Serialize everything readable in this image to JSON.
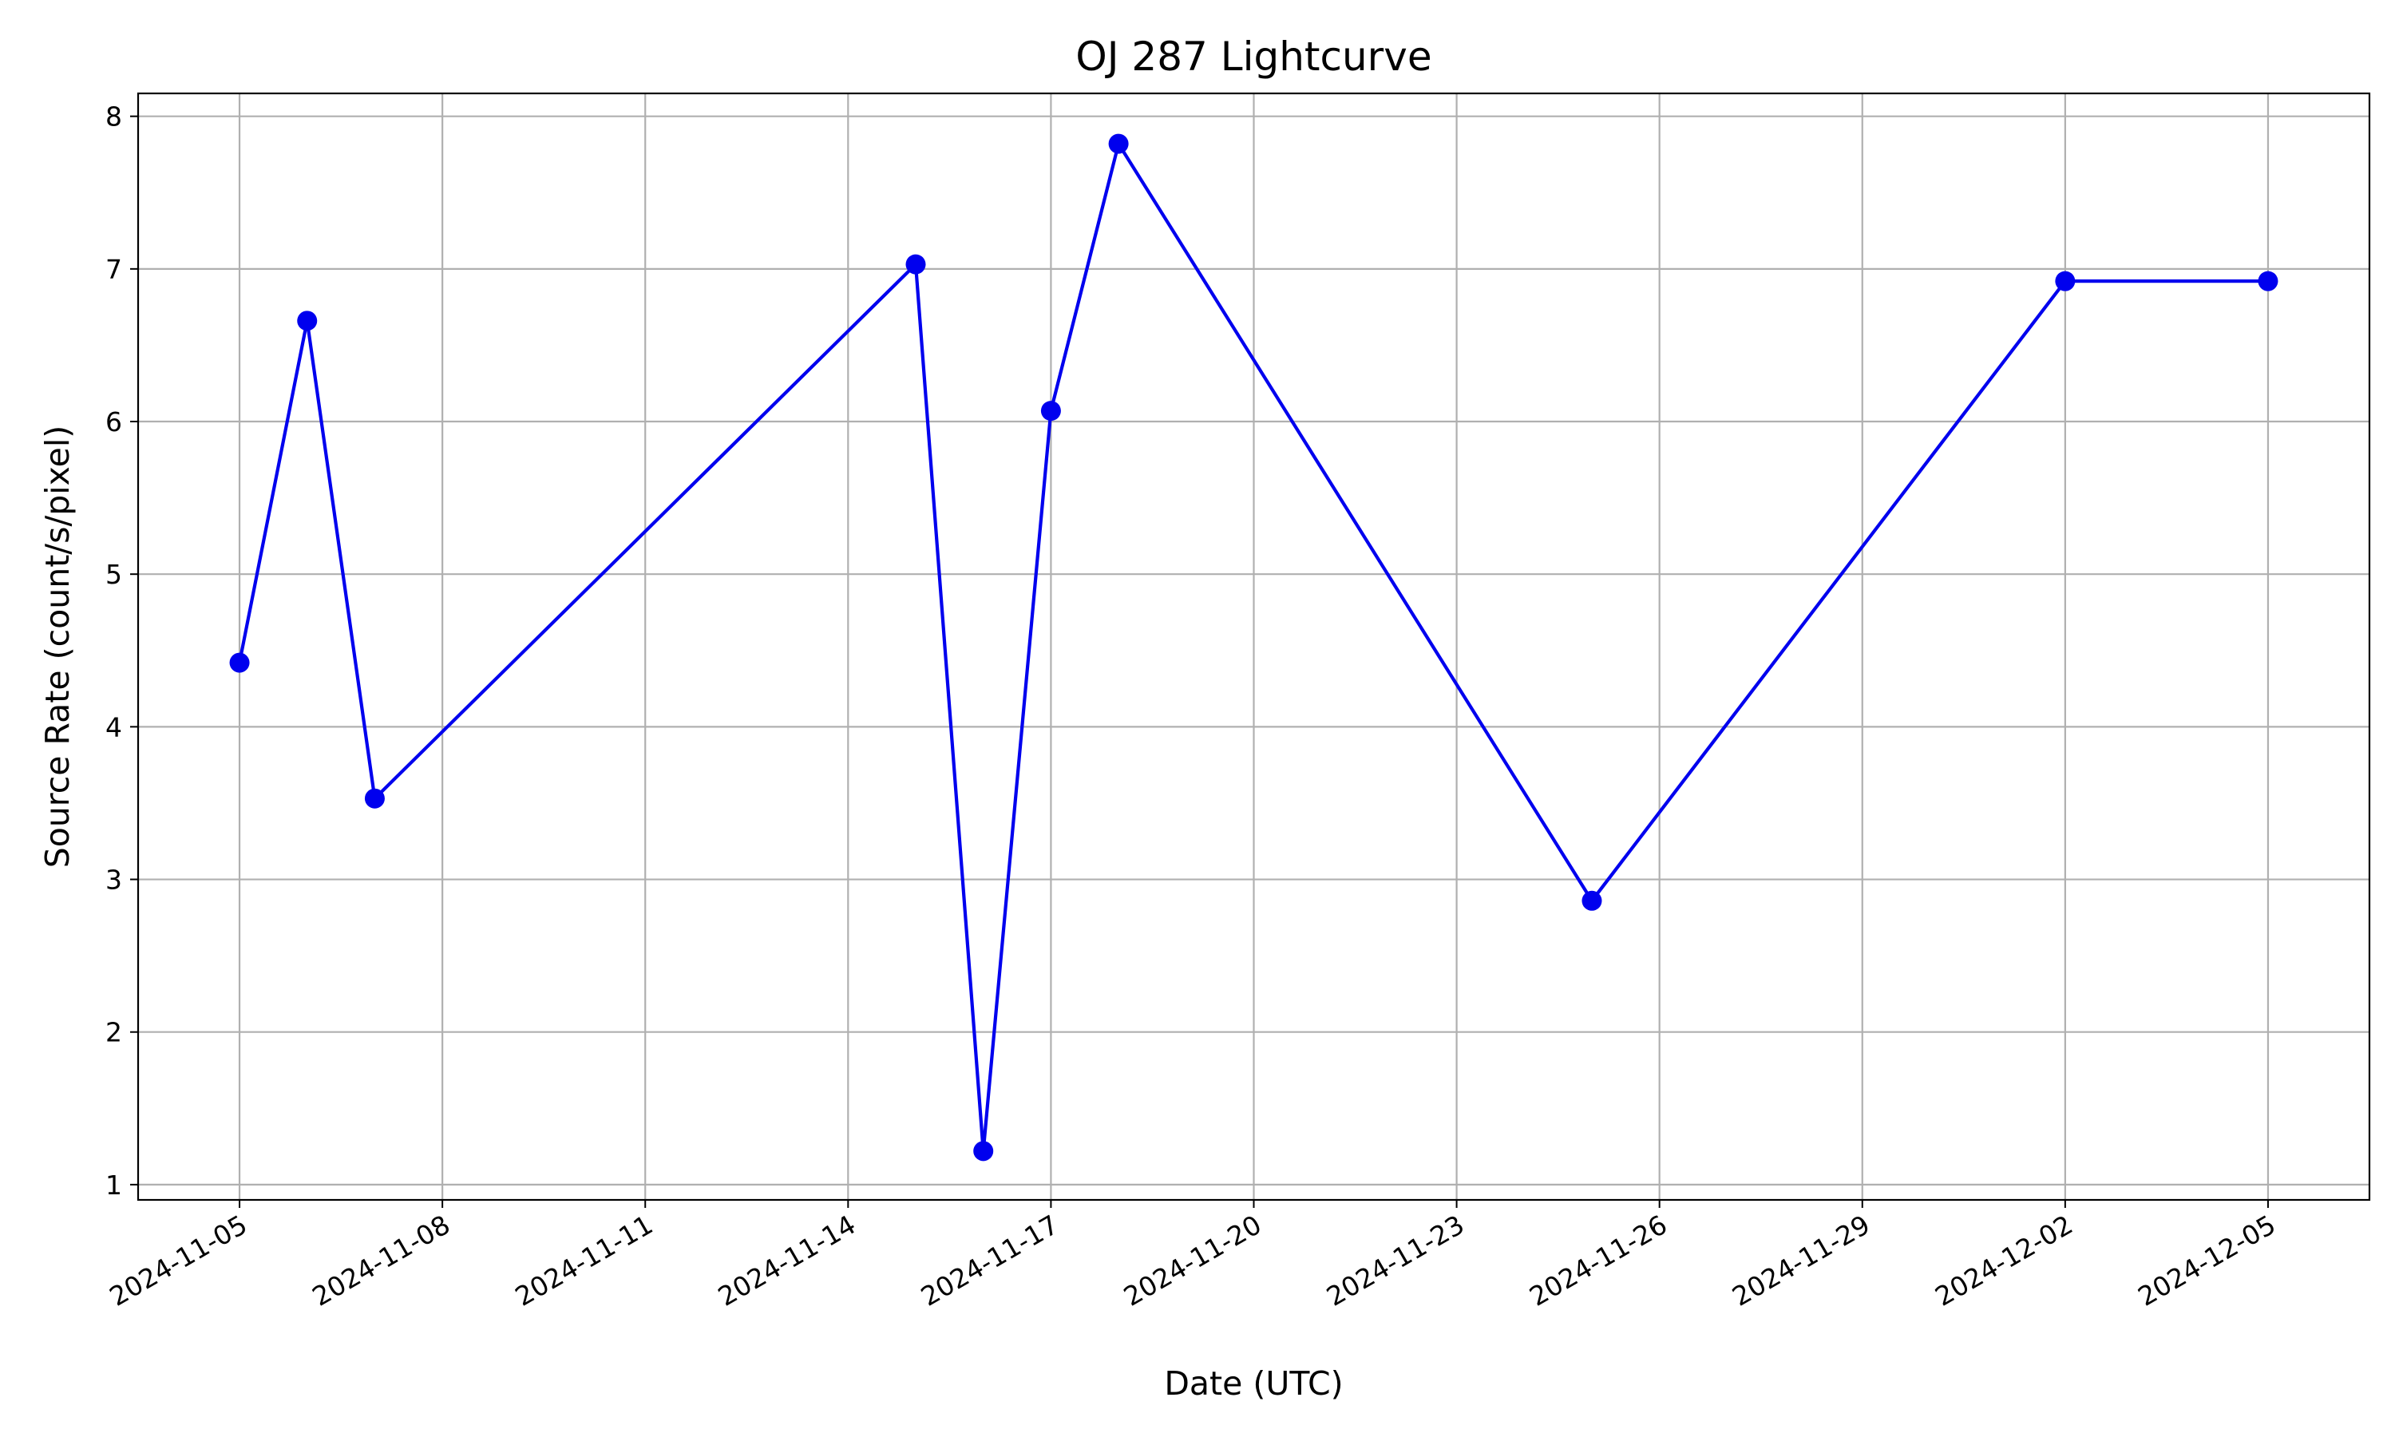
{
  "chart_data": {
    "type": "line",
    "title": "OJ 287 Lightcurve",
    "xlabel": "Date (UTC)",
    "ylabel": "Source Rate (count/s/pixel)",
    "x_type": "date",
    "xlim": [
      "2024-11-03T12:00",
      "2024-12-06T12:00"
    ],
    "ylim": [
      0.9,
      8.15
    ],
    "x_ticks": [
      "2024-11-05",
      "2024-11-08",
      "2024-11-11",
      "2024-11-14",
      "2024-11-17",
      "2024-11-20",
      "2024-11-23",
      "2024-11-26",
      "2024-11-29",
      "2024-12-02",
      "2024-12-05"
    ],
    "y_ticks": [
      1,
      2,
      3,
      4,
      5,
      6,
      7,
      8
    ],
    "grid": true,
    "series": [
      {
        "color": "#0000ee",
        "marker": "circle",
        "x": [
          "2024-11-05",
          "2024-11-06",
          "2024-11-07",
          "2024-11-15",
          "2024-11-16",
          "2024-11-17",
          "2024-11-18",
          "2024-11-25",
          "2024-12-02",
          "2024-12-05"
        ],
        "y": [
          4.42,
          6.66,
          3.53,
          7.03,
          1.22,
          6.07,
          7.82,
          2.86,
          6.92,
          6.92
        ]
      }
    ]
  }
}
